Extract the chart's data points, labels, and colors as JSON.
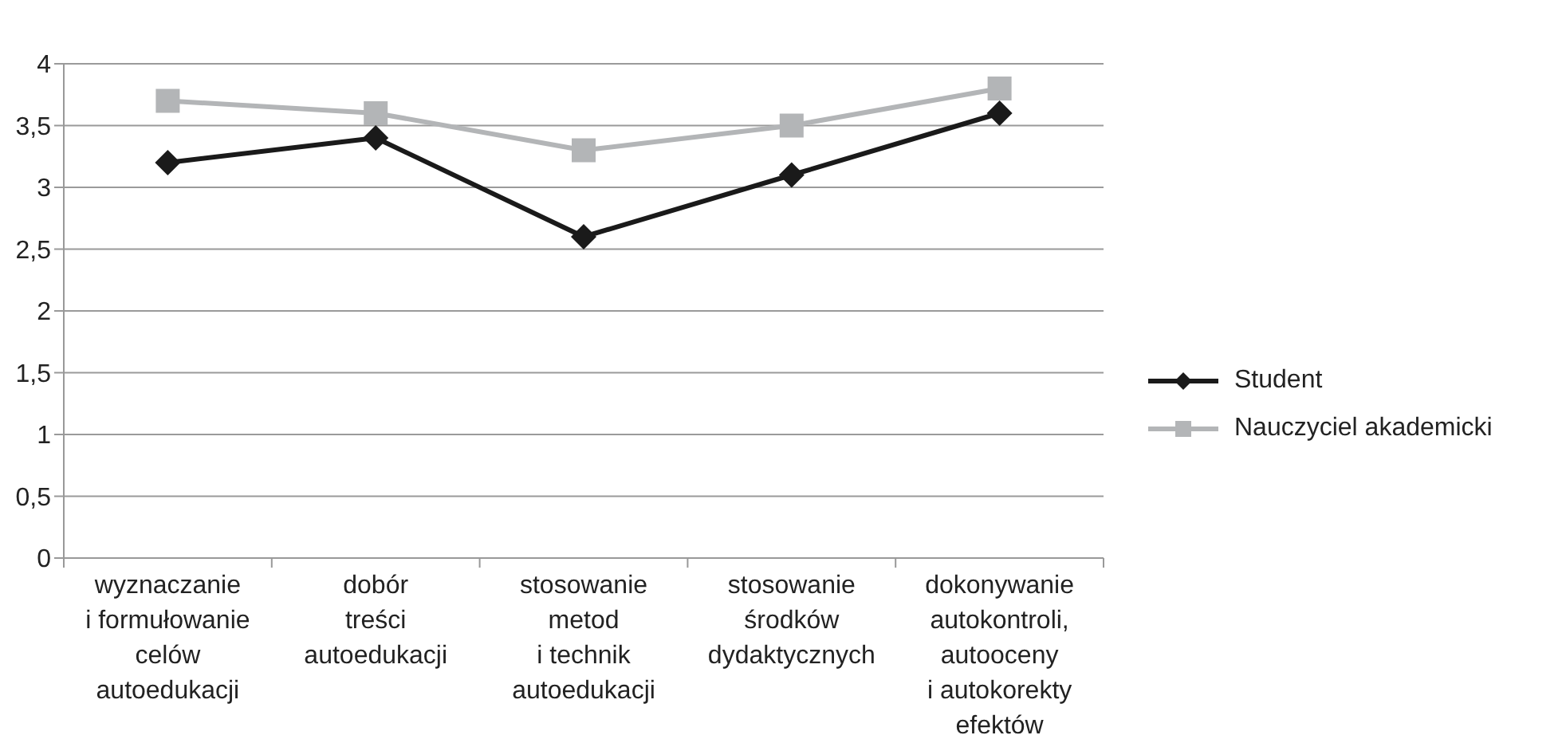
{
  "chart_data": {
    "type": "line",
    "categories": [
      "wyznaczanie\ni formułowanie\ncelów\nautoedukacji",
      "dobór\ntreści\nautoedukacji",
      "stosowanie\nmetod\ni technik\nautoedukacji",
      "stosowanie\nśrodków\ndydaktycznych",
      "dokonywanie\nautokontroli,\nautooceny\ni autokorekty\nefektów"
    ],
    "series": [
      {
        "name": "Student",
        "color": "#1a1a1a",
        "marker": "diamond",
        "values": [
          3.2,
          3.4,
          2.6,
          3.1,
          3.6
        ]
      },
      {
        "name": "Nauczyciel akademicki",
        "color": "#b3b5b7",
        "marker": "square",
        "values": [
          3.7,
          3.6,
          3.3,
          3.5,
          3.8
        ]
      }
    ],
    "ylim": [
      0,
      4
    ],
    "yticks": [
      0,
      {
        "value": 0.5,
        "label": "0,5"
      },
      1,
      {
        "value": 1.5,
        "label": "1,5"
      },
      2,
      {
        "value": 2.5,
        "label": "2,5"
      },
      3,
      {
        "value": 3.5,
        "label": "3,5"
      },
      4
    ],
    "grid": "y",
    "legend": "right"
  }
}
